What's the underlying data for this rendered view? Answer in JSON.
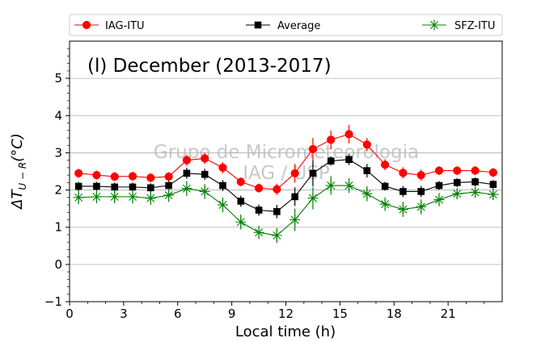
{
  "chart_data": {
    "type": "line",
    "title": "(l) December (2013-2017)",
    "xlabel": "Local time (h)",
    "ylabel": "ΔT_{U−R}(°C)",
    "ylabel_main": "ΔT",
    "ylabel_sub": "U − R",
    "ylabel_unit": "(°C)",
    "xlim": [
      0,
      24
    ],
    "ylim": [
      -1,
      6
    ],
    "xticks": [
      0,
      3,
      6,
      9,
      12,
      15,
      18,
      21
    ],
    "xtick_labels": [
      "0",
      "3",
      "6",
      "9",
      "12",
      "15",
      "18",
      "21"
    ],
    "yticks": [
      -1,
      0,
      1,
      2,
      3,
      4,
      5
    ],
    "ytick_labels": [
      "−1",
      "0",
      "1",
      "2",
      "3",
      "4",
      "5"
    ],
    "grid": "horizontal",
    "legend_placement": "top, above plot",
    "watermark": [
      "Grupo de Micrometeorologia",
      "IAG / USP"
    ],
    "x": [
      0.5,
      1.5,
      2.5,
      3.5,
      4.5,
      5.5,
      6.5,
      7.5,
      8.5,
      9.5,
      10.5,
      11.5,
      12.5,
      13.5,
      14.5,
      15.5,
      16.5,
      17.5,
      18.5,
      19.5,
      20.5,
      21.5,
      22.5,
      23.5
    ],
    "series": [
      {
        "name": "IAG-ITU",
        "color": "#ff0000",
        "marker": "circle",
        "values": [
          2.45,
          2.4,
          2.36,
          2.37,
          2.33,
          2.36,
          2.8,
          2.85,
          2.6,
          2.22,
          2.05,
          2.02,
          2.45,
          3.1,
          3.35,
          3.5,
          3.22,
          2.68,
          2.46,
          2.4,
          2.52,
          2.52,
          2.52,
          2.47
        ],
        "errors": [
          0.12,
          0.12,
          0.12,
          0.12,
          0.12,
          0.12,
          0.15,
          0.15,
          0.15,
          0.12,
          0.12,
          0.15,
          0.25,
          0.3,
          0.25,
          0.25,
          0.18,
          0.15,
          0.15,
          0.15,
          0.12,
          0.12,
          0.12,
          0.12
        ]
      },
      {
        "name": "Average",
        "color": "#000000",
        "marker": "square",
        "values": [
          2.1,
          2.1,
          2.08,
          2.08,
          2.06,
          2.12,
          2.45,
          2.42,
          2.12,
          1.7,
          1.46,
          1.42,
          1.82,
          2.45,
          2.78,
          2.82,
          2.52,
          2.1,
          1.96,
          1.96,
          2.12,
          2.2,
          2.22,
          2.15
        ],
        "errors": [
          0.12,
          0.12,
          0.12,
          0.12,
          0.12,
          0.12,
          0.15,
          0.15,
          0.15,
          0.15,
          0.15,
          0.18,
          0.25,
          0.35,
          0.12,
          0.15,
          0.18,
          0.12,
          0.15,
          0.15,
          0.12,
          0.12,
          0.12,
          0.12
        ]
      },
      {
        "name": "SFZ-ITU",
        "color": "#008000",
        "marker": "star",
        "values": [
          1.8,
          1.82,
          1.82,
          1.82,
          1.78,
          1.86,
          2.04,
          1.96,
          1.6,
          1.14,
          0.86,
          0.78,
          1.2,
          1.78,
          2.12,
          2.12,
          1.9,
          1.62,
          1.48,
          1.55,
          1.74,
          1.9,
          1.94,
          1.88
        ],
        "errors": [
          0.18,
          0.18,
          0.18,
          0.18,
          0.18,
          0.18,
          0.2,
          0.2,
          0.2,
          0.2,
          0.18,
          0.2,
          0.3,
          0.3,
          0.25,
          0.2,
          0.2,
          0.18,
          0.2,
          0.2,
          0.18,
          0.15,
          0.15,
          0.15
        ]
      }
    ]
  }
}
